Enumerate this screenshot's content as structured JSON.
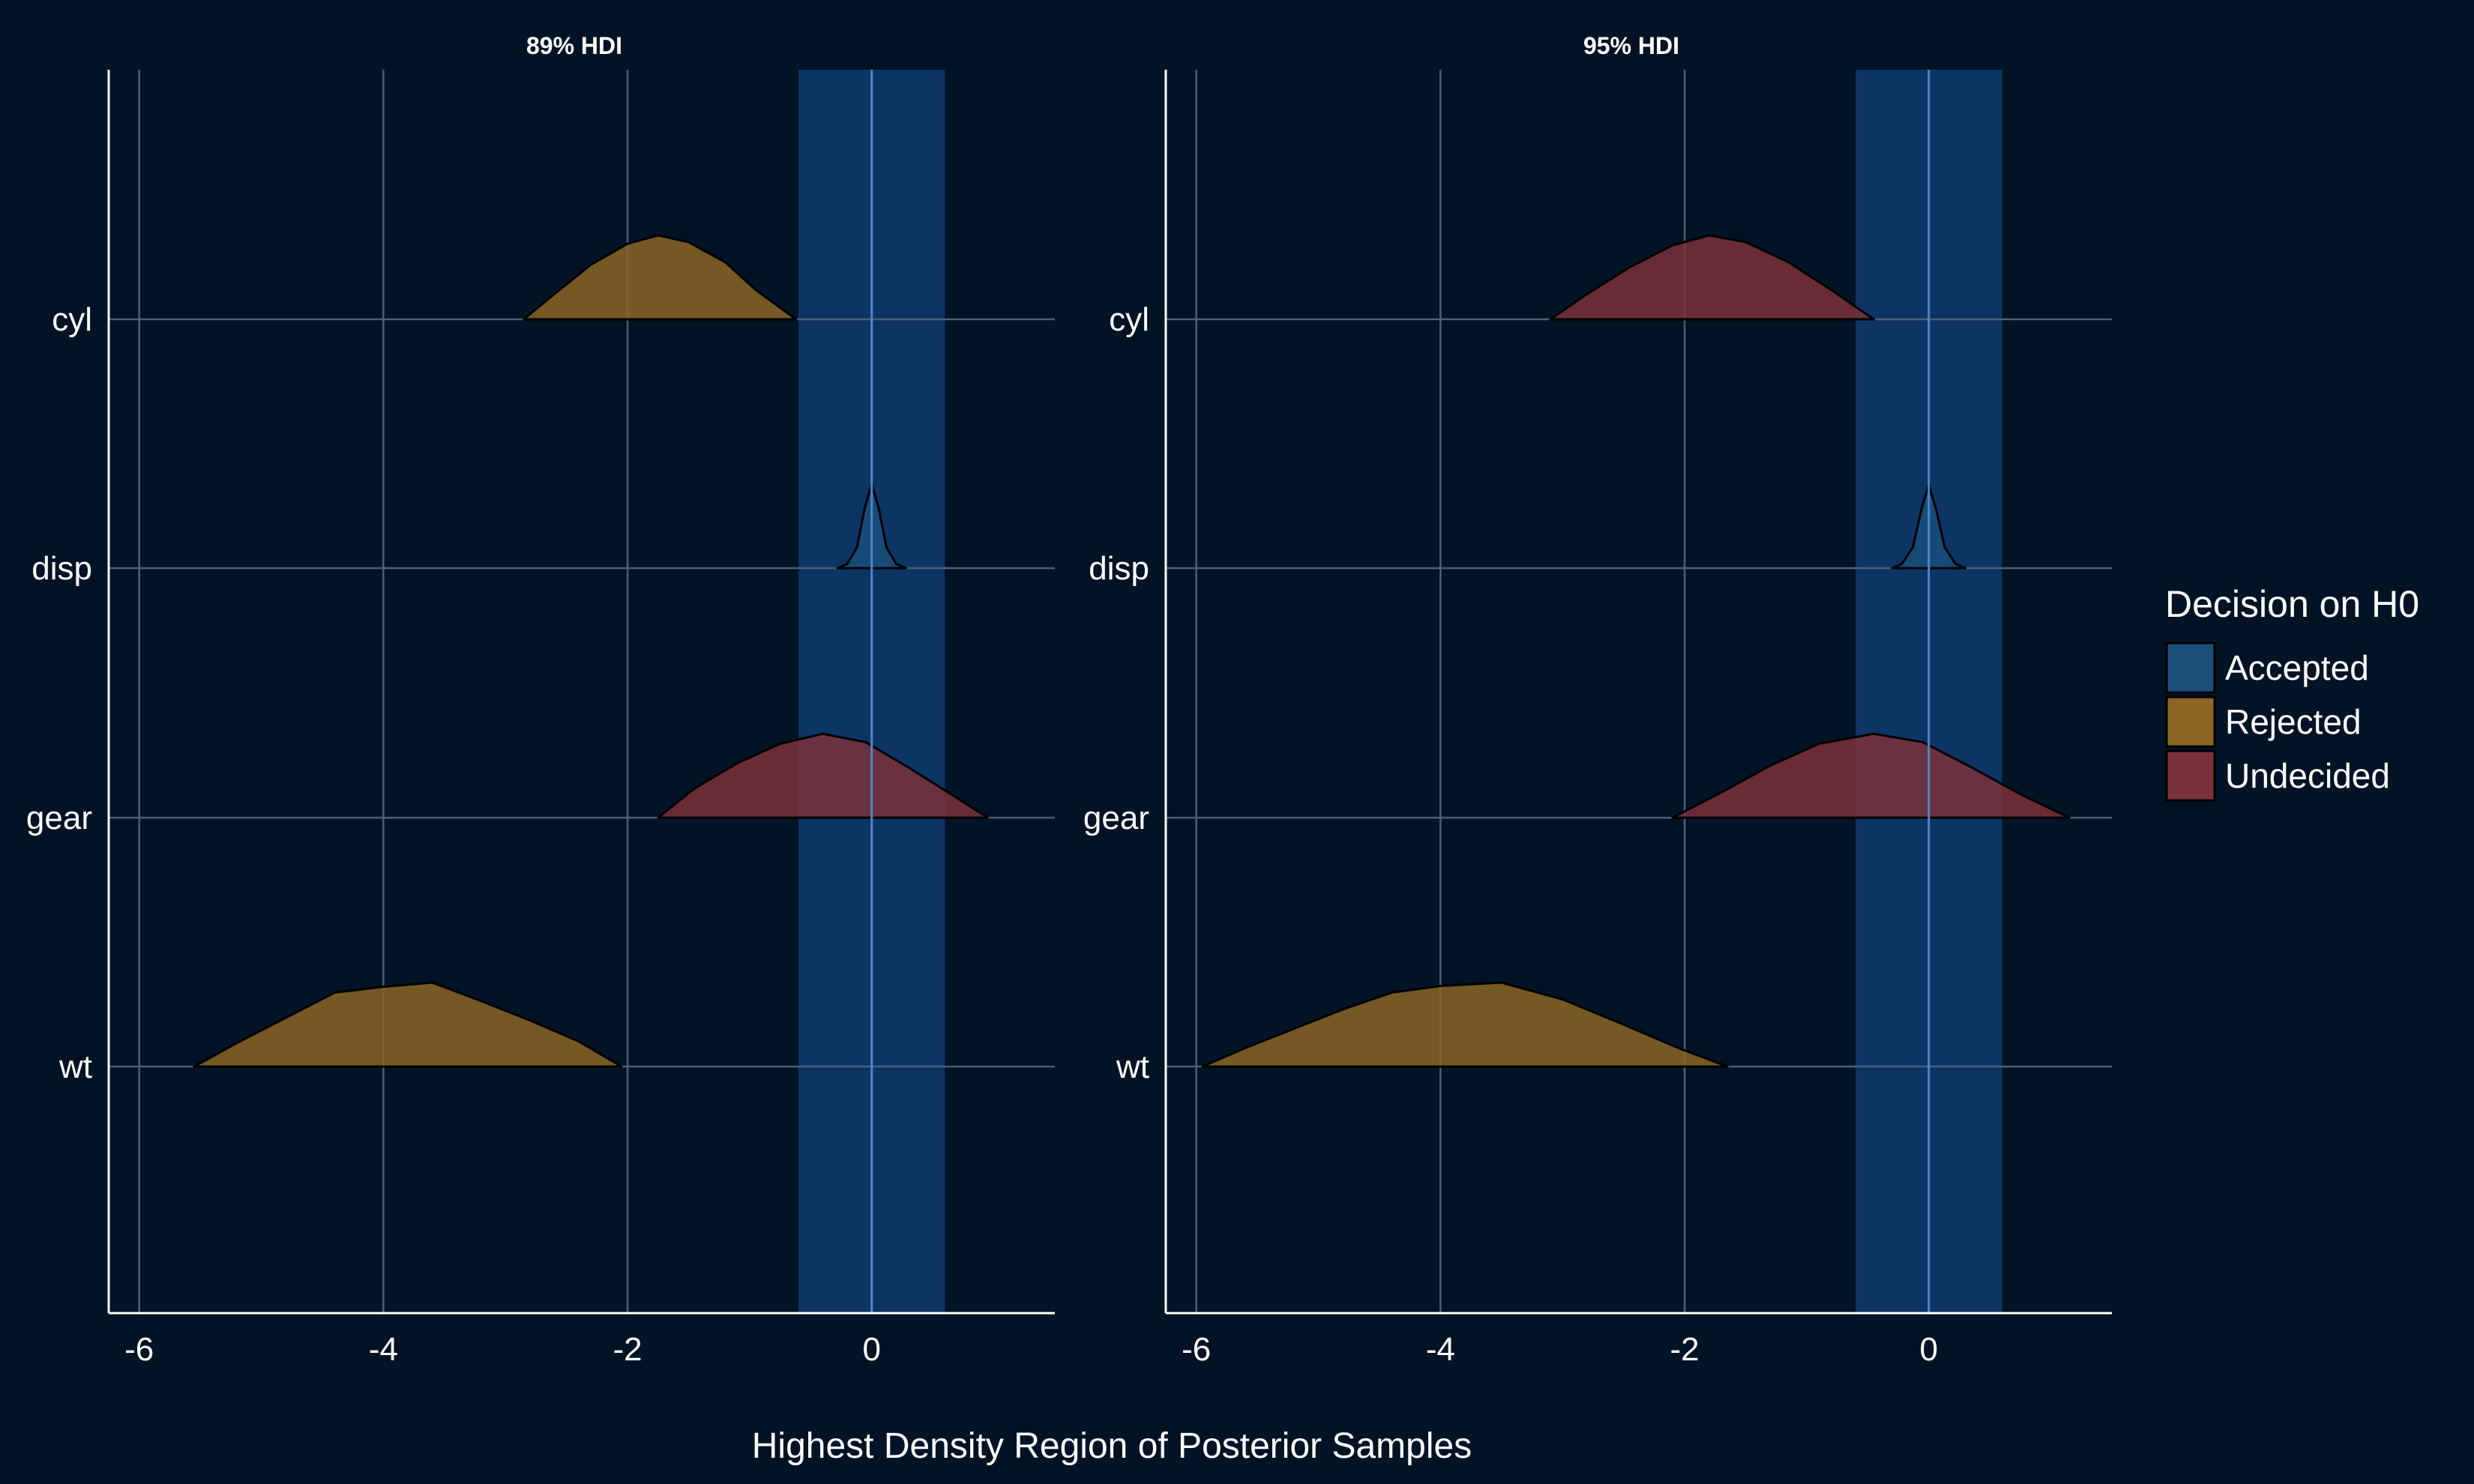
{
  "chart_data": {
    "type": "area",
    "xlabel": "Highest Density Region of Posterior Samples",
    "ylabel": "",
    "xlim": [
      -6.25,
      1.5
    ],
    "x_ticks": [
      -6,
      -4,
      -2,
      0
    ],
    "x_tick_labels": [
      "-6",
      "-4",
      "-2",
      "0"
    ],
    "categories": [
      "cyl",
      "disp",
      "gear",
      "wt"
    ],
    "rope": [
      -0.6,
      0.6
    ],
    "grid": true,
    "legend": {
      "title": "Decision on H0",
      "placement": "right",
      "entries": [
        {
          "label": "Accepted",
          "color": "#1a4f7a"
        },
        {
          "label": "Rejected",
          "color": "#8a6524"
        },
        {
          "label": "Undecided",
          "color": "#7b313a"
        }
      ]
    },
    "colors": {
      "background": "#011325",
      "grid": "#4f5f73",
      "rope": "#0d3a6b",
      "zero_line": "#4f86c6",
      "axis": "#ffffff"
    },
    "facets": [
      {
        "title": "89% HDI",
        "series": [
          {
            "name": "cyl",
            "decision": "Rejected",
            "x": [
              -2.85,
              -2.6,
              -2.3,
              -2.0,
              -1.75,
              -1.5,
              -1.2,
              -0.95,
              -0.62
            ],
            "density": [
              0.0,
              0.3,
              0.65,
              0.9,
              1.0,
              0.92,
              0.68,
              0.35,
              0.0
            ]
          },
          {
            "name": "disp",
            "decision": "Accepted",
            "x": [
              -0.28,
              -0.2,
              -0.12,
              -0.06,
              0.0,
              0.06,
              0.12,
              0.2,
              0.28
            ],
            "density": [
              0.0,
              0.05,
              0.25,
              0.7,
              1.0,
              0.7,
              0.25,
              0.05,
              0.0
            ]
          },
          {
            "name": "gear",
            "decision": "Undecided",
            "x": [
              -1.75,
              -1.45,
              -1.1,
              -0.75,
              -0.4,
              -0.05,
              0.3,
              0.65,
              0.95
            ],
            "density": [
              0.0,
              0.35,
              0.65,
              0.88,
              1.0,
              0.9,
              0.6,
              0.28,
              0.0
            ]
          },
          {
            "name": "wt",
            "decision": "Rejected",
            "x": [
              -5.55,
              -5.2,
              -4.8,
              -4.4,
              -4.0,
              -3.6,
              -3.2,
              -2.8,
              -2.4,
              -2.05
            ],
            "density": [
              0.0,
              0.28,
              0.58,
              0.88,
              0.95,
              1.0,
              0.78,
              0.55,
              0.3,
              0.0
            ]
          }
        ]
      },
      {
        "title": "95% HDI",
        "series": [
          {
            "name": "cyl",
            "decision": "Undecided",
            "x": [
              -3.1,
              -2.8,
              -2.45,
              -2.1,
              -1.8,
              -1.5,
              -1.15,
              -0.8,
              -0.45
            ],
            "density": [
              0.0,
              0.3,
              0.62,
              0.88,
              1.0,
              0.92,
              0.68,
              0.35,
              0.0
            ]
          },
          {
            "name": "disp",
            "decision": "Accepted",
            "x": [
              -0.3,
              -0.22,
              -0.13,
              -0.06,
              0.0,
              0.06,
              0.13,
              0.22,
              0.3
            ],
            "density": [
              0.0,
              0.05,
              0.25,
              0.7,
              1.0,
              0.7,
              0.25,
              0.05,
              0.0
            ]
          },
          {
            "name": "gear",
            "decision": "Undecided",
            "x": [
              -2.1,
              -1.7,
              -1.3,
              -0.9,
              -0.45,
              -0.05,
              0.35,
              0.75,
              1.15
            ],
            "density": [
              0.0,
              0.3,
              0.62,
              0.88,
              1.0,
              0.9,
              0.6,
              0.28,
              0.0
            ]
          },
          {
            "name": "wt",
            "decision": "Rejected",
            "x": [
              -5.95,
              -5.6,
              -5.2,
              -4.8,
              -4.4,
              -4.0,
              -3.5,
              -3.0,
              -2.5,
              -2.05,
              -1.65
            ],
            "density": [
              0.0,
              0.22,
              0.45,
              0.68,
              0.88,
              0.96,
              1.0,
              0.8,
              0.5,
              0.22,
              0.0
            ]
          }
        ]
      }
    ]
  }
}
